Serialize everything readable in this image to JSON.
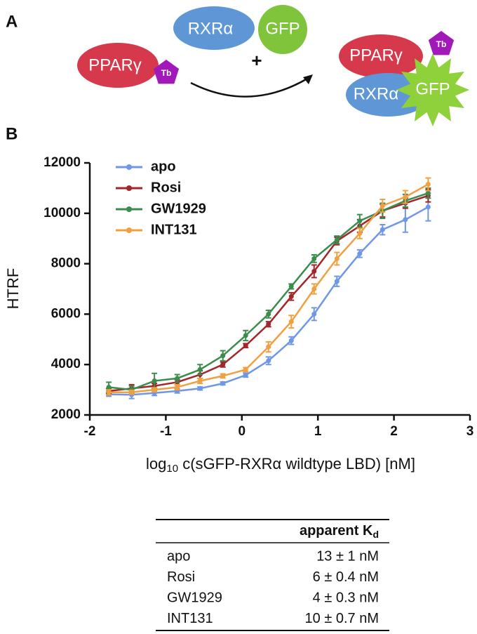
{
  "diagram": {
    "panel_label": "A",
    "ppar": "PPARγ",
    "tb": "Tb",
    "rxr": "RXRα",
    "gfp": "GFP",
    "plus": "+",
    "complex_ppar": "PPARγ",
    "complex_tb": "Tb",
    "complex_rxr": "RXRα",
    "complex_gfp": "GFP"
  },
  "chart_data": {
    "type": "line",
    "panel_label": "B",
    "x_label": {
      "main": "log",
      "sub": "10",
      "rest": " c(sGFP-RXRα wildtype LBD) [nM]"
    },
    "y_label": "HTRF",
    "x": [
      -1.75,
      -1.45,
      -1.15,
      -0.85,
      -0.55,
      -0.25,
      0.05,
      0.35,
      0.65,
      0.95,
      1.25,
      1.55,
      1.85,
      2.15,
      2.45
    ],
    "series": [
      {
        "name": "apo",
        "color": "#6f97e8",
        "values": [
          2820,
          2800,
          2870,
          2950,
          3050,
          3250,
          3580,
          4150,
          4950,
          6000,
          7300,
          8400,
          9350,
          9750,
          10250
        ],
        "errors": [
          80,
          150,
          100,
          80,
          60,
          60,
          80,
          150,
          150,
          250,
          200,
          150,
          200,
          500,
          550
        ]
      },
      {
        "name": "Rosi",
        "color": "#a3262a",
        "values": [
          2950,
          3050,
          3150,
          3300,
          3600,
          4000,
          4750,
          5600,
          6700,
          7700,
          8900,
          9500,
          10100,
          10400,
          10700
        ],
        "errors": [
          100,
          150,
          100,
          100,
          150,
          100,
          80,
          100,
          150,
          250,
          150,
          250,
          250,
          200,
          250
        ]
      },
      {
        "name": "GW1929",
        "color": "#3c8c4e",
        "values": [
          3100,
          3000,
          3350,
          3450,
          3800,
          4350,
          5150,
          6000,
          7100,
          8200,
          8950,
          9700,
          10100,
          10500,
          10800
        ],
        "errors": [
          200,
          150,
          300,
          150,
          200,
          200,
          200,
          150,
          100,
          150,
          150,
          250,
          300,
          250,
          200
        ]
      },
      {
        "name": "INT131",
        "color": "#f0a040",
        "values": [
          2900,
          2900,
          3000,
          3100,
          3350,
          3550,
          3800,
          4700,
          5700,
          7000,
          8200,
          9200,
          10300,
          10650,
          11150
        ],
        "errors": [
          100,
          80,
          80,
          100,
          100,
          80,
          80,
          200,
          250,
          200,
          250,
          200,
          250,
          250,
          250
        ]
      }
    ],
    "xlim": [
      -2,
      3
    ],
    "xticks": [
      -2,
      -1,
      0,
      1,
      2,
      3
    ],
    "ylim": [
      2000,
      12000
    ],
    "yticks": [
      2000,
      4000,
      6000,
      8000,
      10000,
      12000
    ],
    "legend": "upper left"
  },
  "table": {
    "header": {
      "text": "apparent K",
      "sub": "d"
    },
    "rows": [
      [
        "apo",
        "13 ± 1 nM"
      ],
      [
        "Rosi",
        "6 ± 0.4 nM"
      ],
      [
        "GW1929",
        "4 ± 0.3 nM"
      ],
      [
        "INT131",
        "10 ± 0.7 nM"
      ]
    ]
  }
}
